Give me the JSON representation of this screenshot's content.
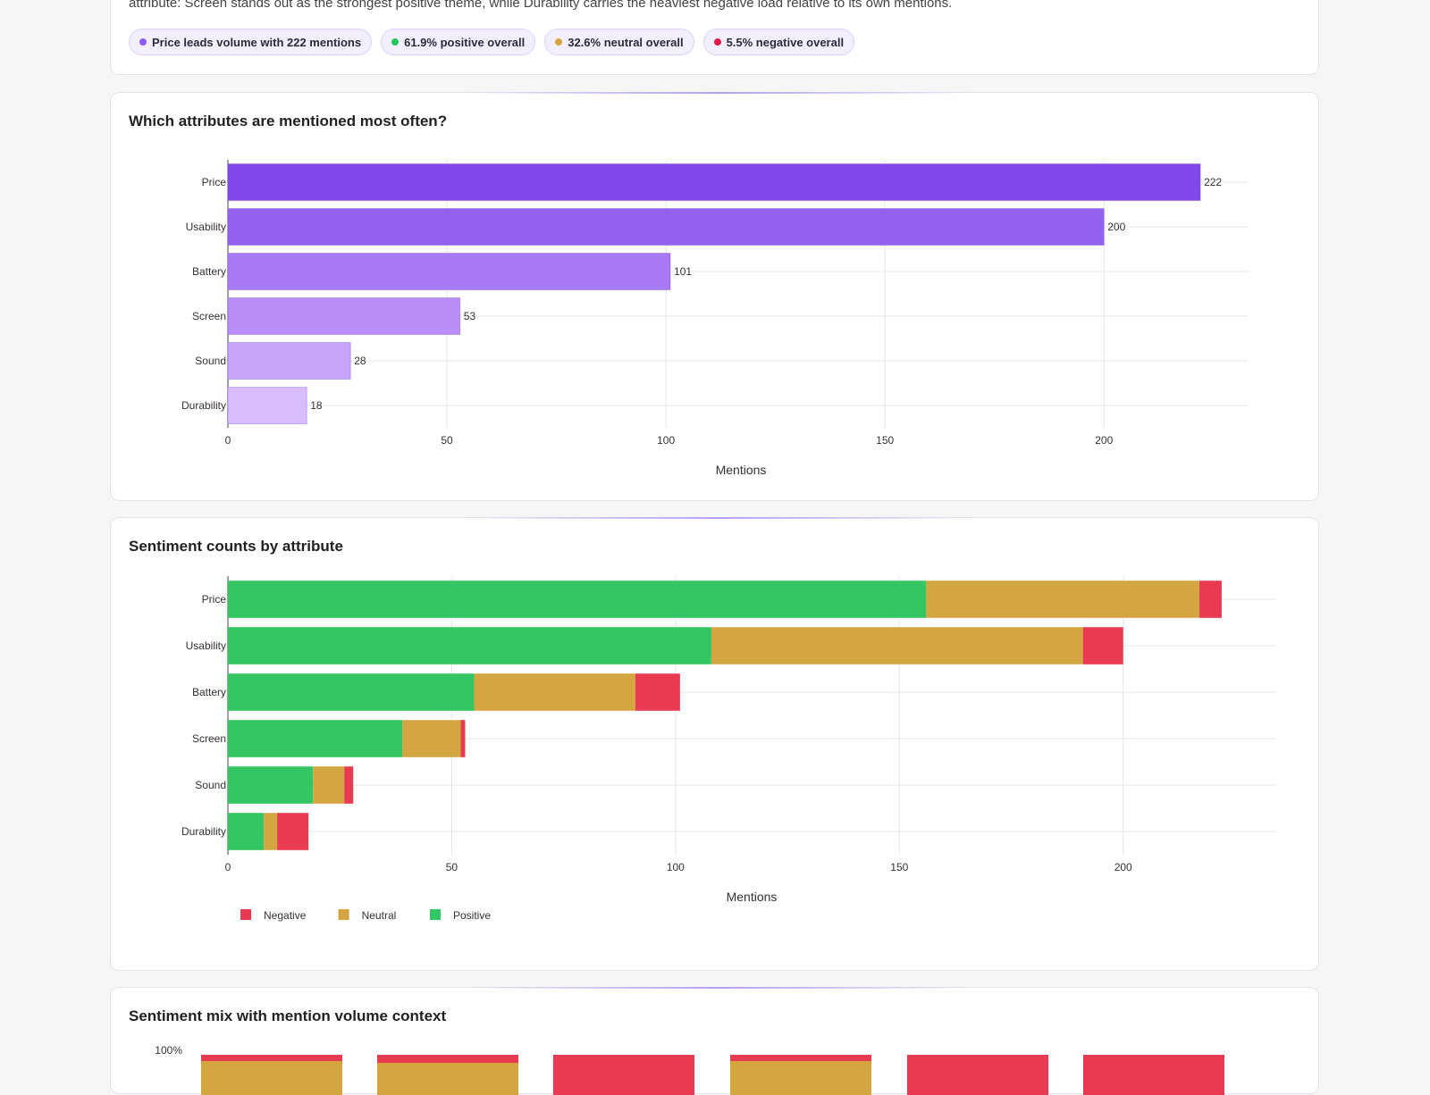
{
  "summary": {
    "text": "attribute: Screen stands out as the strongest positive theme, while Durability carries the heaviest negative load relative to its own mentions.",
    "pills": [
      {
        "label": "Price leads volume with 222 mentions",
        "color": "#8b5cf6"
      },
      {
        "label": "61.9% positive overall",
        "color": "#22c55e"
      },
      {
        "label": "32.6% neutral overall",
        "color": "#d4a640"
      },
      {
        "label": "5.5% negative overall",
        "color": "#e11d48"
      }
    ]
  },
  "colors": {
    "positive": "#34c664",
    "neutral": "#d4a642",
    "negative": "#e83a50"
  },
  "chart_data": [
    {
      "type": "bar",
      "orientation": "horizontal",
      "title": "Which attributes are mentioned most often?",
      "categories": [
        "Price",
        "Usability",
        "Battery",
        "Screen",
        "Sound",
        "Durability"
      ],
      "values": [
        222,
        200,
        101,
        53,
        28,
        18
      ],
      "bar_colors": [
        "#8048e8",
        "#9462f0",
        "#a97af6",
        "#b98ef8",
        "#c8a4fb",
        "#d7bdfc"
      ],
      "xlabel": "Mentions",
      "xlim": [
        0,
        233
      ],
      "xticks": [
        0,
        50,
        100,
        150,
        200
      ],
      "grid": true
    },
    {
      "type": "bar",
      "orientation": "horizontal",
      "stacked": true,
      "title": "Sentiment counts by attribute",
      "categories": [
        "Price",
        "Usability",
        "Battery",
        "Screen",
        "Sound",
        "Durability"
      ],
      "series": [
        {
          "name": "Positive",
          "values": [
            156,
            108,
            55,
            39,
            19,
            8
          ]
        },
        {
          "name": "Neutral",
          "values": [
            61,
            83,
            36,
            13,
            7,
            3
          ]
        },
        {
          "name": "Negative",
          "values": [
            5,
            9,
            10,
            1,
            2,
            7
          ]
        }
      ],
      "legend": [
        "Negative",
        "Neutral",
        "Positive"
      ],
      "legend_position": "bottom-left",
      "xlabel": "Mentions",
      "xlim": [
        0,
        234
      ],
      "xticks": [
        0,
        50,
        100,
        150,
        200
      ],
      "grid": true
    },
    {
      "type": "bar",
      "stacked": true,
      "title": "Sentiment mix with mention volume context",
      "yticks": [
        "100%"
      ],
      "note": "partially visible"
    }
  ]
}
